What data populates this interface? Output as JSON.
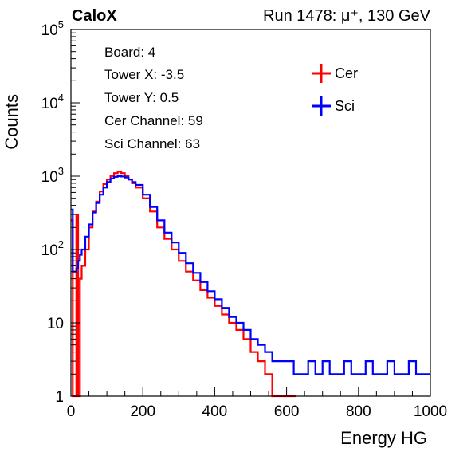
{
  "header": {
    "experiment": "CaloX",
    "run_info": "Run 1478:   μ⁺, 130 GeV"
  },
  "info_box": {
    "lines": [
      "Board: 4",
      "Tower X: -3.5",
      "Tower Y: 0.5",
      "Cer Channel: 59",
      "Sci Channel: 63"
    ]
  },
  "chart_data": {
    "type": "line",
    "title": "",
    "xlabel": "Energy HG",
    "ylabel": "Counts",
    "xlim": [
      0,
      1000
    ],
    "ylim": [
      1,
      100000
    ],
    "yscale": "log",
    "grid": false,
    "legend_position": "top-right",
    "x_ticks": [
      0,
      200,
      400,
      600,
      800,
      1000
    ],
    "y_ticks": [
      1,
      10,
      100,
      1000,
      10000,
      100000
    ],
    "y_tick_labels": [
      {
        "base": "1",
        "exp": ""
      },
      {
        "base": "10",
        "exp": ""
      },
      {
        "base": "10",
        "exp": "2"
      },
      {
        "base": "10",
        "exp": "3"
      },
      {
        "base": "10",
        "exp": "4"
      },
      {
        "base": "10",
        "exp": "5"
      }
    ],
    "series": [
      {
        "name": "Cer",
        "color": "#ff0000",
        "x": [
          0,
          5,
          10,
          15,
          20,
          25,
          30,
          40,
          50,
          60,
          70,
          80,
          90,
          100,
          110,
          120,
          130,
          140,
          150,
          160,
          170,
          180,
          200,
          220,
          240,
          260,
          280,
          300,
          320,
          340,
          360,
          380,
          400,
          420,
          440,
          460,
          480,
          500,
          520,
          540,
          560,
          580,
          600,
          620
        ],
        "y": [
          250,
          1,
          1,
          300,
          1,
          40,
          60,
          100,
          200,
          330,
          450,
          620,
          780,
          900,
          1000,
          1100,
          1150,
          1100,
          1000,
          900,
          800,
          700,
          500,
          330,
          200,
          140,
          100,
          70,
          50,
          38,
          28,
          22,
          17,
          13,
          10,
          8,
          6,
          4,
          3,
          2,
          1,
          1,
          1,
          1
        ]
      },
      {
        "name": "Sci",
        "color": "#0000ff",
        "x": [
          0,
          5,
          10,
          15,
          20,
          25,
          30,
          40,
          50,
          60,
          70,
          80,
          90,
          100,
          110,
          120,
          130,
          140,
          150,
          160,
          170,
          180,
          200,
          220,
          240,
          260,
          280,
          300,
          320,
          340,
          360,
          380,
          400,
          420,
          440,
          460,
          480,
          500,
          520,
          540,
          560,
          580,
          600,
          620,
          640,
          660,
          680,
          700,
          720,
          740,
          760,
          780,
          800,
          820,
          840,
          860,
          880,
          900,
          920,
          940,
          960,
          980,
          1000
        ],
        "y": [
          350,
          50,
          50,
          55,
          70,
          85,
          100,
          150,
          220,
          320,
          430,
          560,
          700,
          830,
          930,
          980,
          1000,
          990,
          960,
          900,
          830,
          760,
          560,
          380,
          250,
          170,
          125,
          90,
          65,
          48,
          36,
          27,
          21,
          16,
          12,
          10,
          8,
          6,
          5,
          4,
          3,
          3,
          3,
          2,
          2,
          3,
          2,
          3,
          2,
          2,
          3,
          2,
          2,
          3,
          2,
          2,
          3,
          2,
          2,
          3,
          2,
          2,
          2
        ]
      }
    ]
  }
}
